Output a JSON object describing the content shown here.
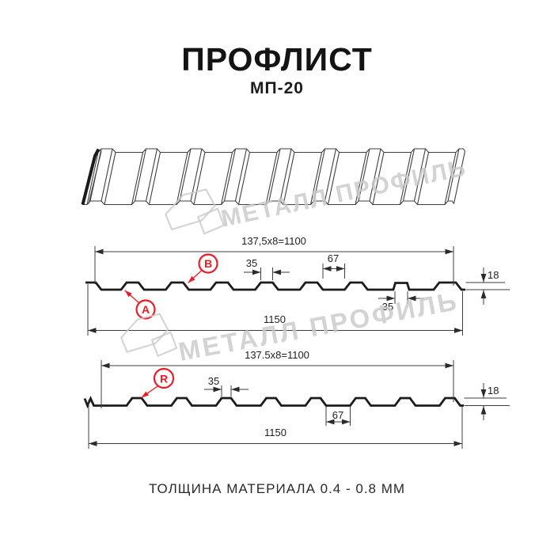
{
  "header": {
    "title": "ПРОФЛИСТ",
    "subtitle": "МП-20"
  },
  "watermark": {
    "text": "МЕТАЛЛ ПРОФИЛЬ"
  },
  "profile_top": {
    "label_a": "A",
    "label_b": "B",
    "dim_module": "137,5x8=1100",
    "dim_rib_top": "35",
    "dim_rib_base": "67",
    "dim_overlap_rib": "35",
    "dim_height": "18",
    "dim_total": "1150"
  },
  "profile_bottom": {
    "label_r": "R",
    "dim_module": "137.5x8=1100",
    "dim_rib_top": "35",
    "dim_valley": "67",
    "dim_height": "18",
    "dim_total": "1150"
  },
  "footer": {
    "thickness_note": "ТОЛЩИНА МАТЕРИАЛА 0.4 - 0.8 ММ"
  },
  "colors": {
    "accent_red": "#ed1b24",
    "line_dark": "#1c1c1c",
    "line_thin": "#3c3c3c",
    "watermark": "#c9c9c9"
  }
}
